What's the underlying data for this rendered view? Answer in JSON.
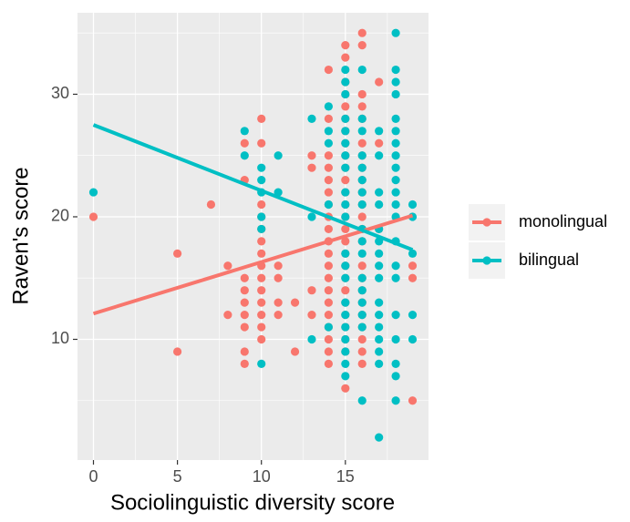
{
  "chart_data": {
    "type": "scatter",
    "x_label": "Sociolinguistic diversity score",
    "y_label": "Raven's score",
    "xlim": [
      -0.95,
      19.95
    ],
    "ylim": [
      0.15,
      36.65
    ],
    "xticks": [
      0,
      5,
      10,
      15
    ],
    "yticks": [
      10,
      20,
      30
    ],
    "x_minor_ticks": [
      2.5,
      7.5,
      12.5,
      17.5
    ],
    "y_minor_ticks": [
      5,
      15,
      25,
      35
    ],
    "grid": true,
    "legend": "right",
    "series": [
      {
        "name": "monolingual",
        "color": "#f8766d",
        "x": [
          0,
          5,
          5,
          7,
          8,
          8,
          9,
          9,
          9,
          9,
          9,
          9,
          9,
          9,
          9,
          10,
          10,
          10,
          10,
          10,
          10,
          10,
          10,
          10,
          10,
          10,
          10,
          10,
          10,
          11,
          11,
          11,
          11,
          12,
          12,
          13,
          13,
          13,
          13,
          14,
          14,
          14,
          14,
          14,
          14,
          14,
          14,
          14,
          14,
          14,
          14,
          14,
          14,
          14,
          14,
          14,
          14,
          14,
          14,
          15,
          15,
          15,
          15,
          15,
          15,
          15,
          15,
          15,
          15,
          15,
          15,
          15,
          15,
          15,
          15,
          15,
          15,
          15,
          15,
          15,
          15,
          15,
          15,
          15,
          15,
          16,
          16,
          16,
          16,
          16,
          16,
          16,
          16,
          16,
          16,
          16,
          16,
          16,
          16,
          16,
          16,
          16,
          16,
          16,
          16,
          16,
          16,
          16,
          17,
          17,
          17,
          19,
          19,
          19
        ],
        "values": [
          20,
          17,
          9,
          21,
          16,
          12,
          26,
          23,
          15,
          14,
          13,
          12,
          11,
          9,
          8,
          28,
          26,
          21,
          20,
          19,
          18,
          17,
          16,
          15,
          14,
          13,
          12,
          11,
          10,
          16,
          15,
          13,
          12,
          13,
          9,
          25,
          24,
          14,
          12,
          32,
          28,
          25,
          24,
          23,
          22,
          21,
          20,
          19,
          18,
          17,
          16,
          15,
          14,
          13,
          12,
          11,
          10,
          9,
          8,
          34,
          33,
          31,
          30,
          29,
          28,
          27,
          26,
          25,
          24,
          23,
          22,
          21,
          20,
          19,
          18,
          17,
          16,
          15,
          14,
          13,
          12,
          11,
          10,
          9,
          6,
          35,
          34,
          30,
          29,
          28,
          26,
          25,
          24,
          23,
          22,
          21,
          20,
          19,
          18,
          16,
          15,
          14,
          13,
          12,
          11,
          10,
          9,
          8,
          31,
          26,
          19,
          16,
          15,
          5
        ],
        "fit_x": [
          0,
          19
        ],
        "fit": [
          12.1,
          20.1
        ]
      },
      {
        "name": "bilingual",
        "color": "#00bfc4",
        "x": [
          0,
          9,
          9,
          10,
          10,
          10,
          10,
          10,
          10,
          11,
          11,
          13,
          13,
          13,
          14,
          14,
          14,
          14,
          14,
          15,
          15,
          15,
          15,
          15,
          15,
          15,
          15,
          15,
          15,
          15,
          15,
          15,
          15,
          15,
          15,
          15,
          15,
          15,
          15,
          15,
          16,
          16,
          16,
          16,
          16,
          16,
          16,
          16,
          16,
          16,
          16,
          16,
          16,
          16,
          16,
          16,
          16,
          17,
          17,
          17,
          17,
          17,
          17,
          17,
          17,
          17,
          17,
          17,
          17,
          17,
          17,
          17,
          17,
          18,
          18,
          18,
          18,
          18,
          18,
          18,
          18,
          18,
          18,
          18,
          18,
          18,
          18,
          18,
          18,
          18,
          18,
          18,
          18,
          18,
          19,
          19,
          19,
          19,
          19
        ],
        "values": [
          22,
          27,
          25,
          24,
          23,
          22,
          20,
          19,
          8,
          25,
          22,
          28,
          20,
          10,
          29,
          27,
          26,
          21,
          11,
          32,
          31,
          30,
          28,
          27,
          26,
          25,
          24,
          22,
          21,
          20,
          17,
          16,
          15,
          13,
          12,
          11,
          10,
          9,
          8,
          7,
          32,
          28,
          27,
          25,
          24,
          23,
          22,
          21,
          19,
          18,
          17,
          15,
          14,
          13,
          12,
          11,
          5,
          27,
          25,
          22,
          21,
          19,
          18,
          17,
          16,
          15,
          13,
          12,
          11,
          10,
          9,
          8,
          2,
          35,
          32,
          31,
          30,
          28,
          27,
          26,
          25,
          24,
          23,
          22,
          21,
          20,
          18,
          16,
          15,
          12,
          10,
          8,
          7,
          5,
          21,
          20,
          17,
          12,
          10
        ],
        "fit_x": [
          0,
          19
        ],
        "fit": [
          27.5,
          17.3
        ]
      }
    ]
  }
}
